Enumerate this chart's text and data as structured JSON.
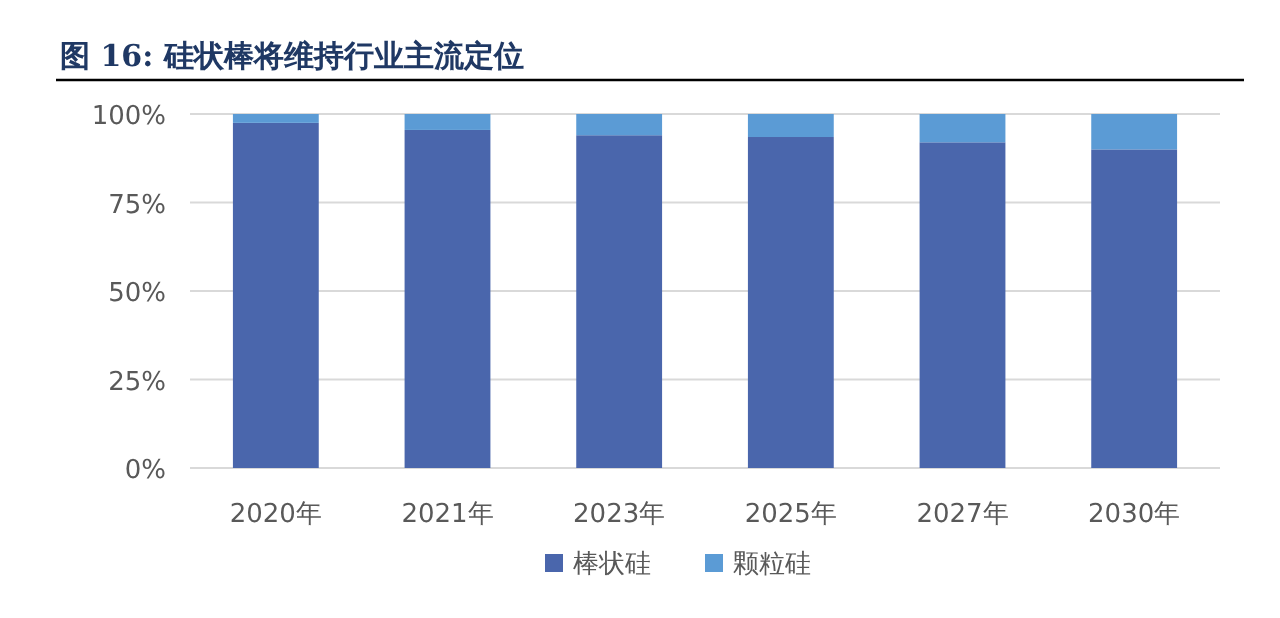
{
  "chart_data": {
    "type": "bar",
    "stacked": true,
    "title": "图 16: 硅状棒将维持行业主流定位",
    "categories": [
      "2020年",
      "2021年",
      "2023年",
      "2025年",
      "2027年",
      "2030年"
    ],
    "series": [
      {
        "name": "棒状硅",
        "color": "#4a66ac",
        "values": [
          97.5,
          95.5,
          94,
          93.5,
          92,
          90
        ]
      },
      {
        "name": "颗粒硅",
        "color": "#5b9bd5",
        "values": [
          2.5,
          4.5,
          6,
          6.5,
          8,
          10
        ]
      }
    ],
    "ylim": [
      0,
      100
    ],
    "yticks": [
      {
        "value": 0,
        "label": "0%"
      },
      {
        "value": 25,
        "label": "25%"
      },
      {
        "value": 50,
        "label": "50%"
      },
      {
        "value": 75,
        "label": "75%"
      },
      {
        "value": 100,
        "label": "100%"
      }
    ],
    "grid": "y",
    "legend": "bottom"
  }
}
